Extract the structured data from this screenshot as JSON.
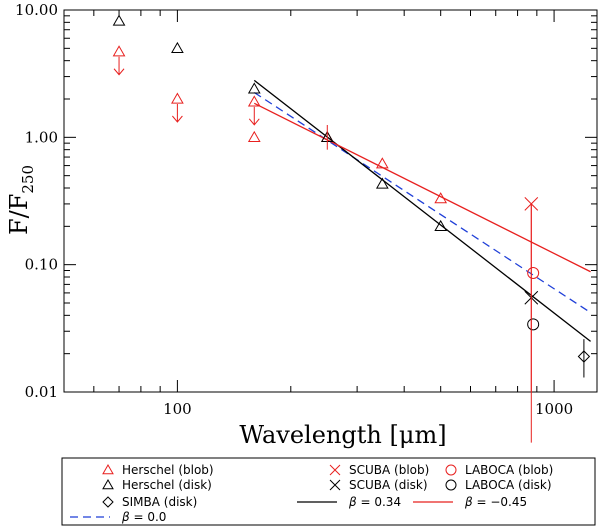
{
  "chart_data": {
    "type": "scatter",
    "title": "",
    "xlabel": "Wavelength [μm]",
    "ylabel_main": "F/F",
    "ylabel_sub": "250",
    "xscale": "log",
    "yscale": "log",
    "xlim": [
      50,
      1300
    ],
    "ylim": [
      0.01,
      10
    ],
    "x_major_ticks": [
      100,
      1000
    ],
    "x_tick_labels": [
      "100",
      "1000"
    ],
    "y_major_ticks": [
      0.01,
      0.1,
      1,
      10
    ],
    "y_tick_labels": [
      "0.01",
      "0.10",
      "1.00",
      "10.00"
    ],
    "colors": {
      "red": "#e8201f",
      "black": "#000000",
      "blue": "#1f3fd8"
    },
    "series": [
      {
        "name": "Herschel (blob)",
        "marker": "triangle",
        "color": "red",
        "points": [
          [
            160,
            1.0
          ],
          [
            250,
            1.0
          ],
          [
            350,
            0.62
          ],
          [
            500,
            0.33
          ]
        ],
        "upper_limits": [
          [
            70,
            4.7
          ],
          [
            100,
            2.0
          ],
          [
            160,
            1.9
          ]
        ]
      },
      {
        "name": "Herschel (disk)",
        "marker": "triangle",
        "color": "black",
        "points": [
          [
            70,
            8.2
          ],
          [
            100,
            5.0
          ],
          [
            160,
            2.4
          ],
          [
            250,
            1.0
          ],
          [
            350,
            0.43
          ],
          [
            500,
            0.2
          ]
        ],
        "upper_limits": []
      },
      {
        "name": "SCUBA (blob)",
        "marker": "x",
        "color": "red",
        "points": [
          [
            870,
            0.3
          ]
        ],
        "yerr": [
          [
            0.004,
            0.3
          ]
        ]
      },
      {
        "name": "SCUBA (disk)",
        "marker": "x",
        "color": "black",
        "points": [
          [
            870,
            0.055
          ]
        ]
      },
      {
        "name": "LABOCA (blob)",
        "marker": "circle",
        "color": "red",
        "points": [
          [
            880,
            0.086
          ]
        ]
      },
      {
        "name": "LABOCA (disk)",
        "marker": "circle",
        "color": "black",
        "points": [
          [
            880,
            0.034
          ]
        ]
      },
      {
        "name": "SIMBA (disk)",
        "marker": "diamond",
        "color": "black",
        "points": [
          [
            1200,
            0.019
          ]
        ],
        "yerr": [
          [
            0.013,
            0.026
          ]
        ]
      }
    ],
    "fits": [
      {
        "label": "β = 0.0",
        "color": "blue",
        "style": "dashed",
        "x": [
          160,
          1250
        ],
        "y": [
          2.25,
          0.042
        ]
      },
      {
        "label": "β = 0.34",
        "color": "black",
        "style": "solid",
        "x": [
          160,
          1250
        ],
        "y": [
          2.8,
          0.025
        ]
      },
      {
        "label": "β = −0.45",
        "color": "red",
        "style": "solid",
        "x": [
          160,
          1250
        ],
        "y": [
          1.85,
          0.088
        ]
      }
    ],
    "legend": {
      "placement": "bottom",
      "entries": [
        {
          "label": "Herschel (blob)",
          "marker": "triangle",
          "color": "red"
        },
        {
          "label": "SCUBA (blob)",
          "marker": "x",
          "color": "red"
        },
        {
          "label": "LABOCA (blob)",
          "marker": "circle",
          "color": "red"
        },
        {
          "label": "Herschel (disk)",
          "marker": "triangle",
          "color": "black"
        },
        {
          "label": "SCUBA (disk)",
          "marker": "x",
          "color": "black"
        },
        {
          "label": "LABOCA (disk)",
          "marker": "circle",
          "color": "black"
        },
        {
          "label": "SIMBA (disk)",
          "marker": "diamond",
          "color": "black"
        },
        {
          "label_prefix": "β",
          "label_rest": " = 0.34",
          "marker": "line-solid",
          "color": "black"
        },
        {
          "label_prefix": "β",
          "label_rest": " = −0.45",
          "marker": "line-solid",
          "color": "red"
        },
        {
          "label_prefix": "β",
          "label_rest": " = 0.0",
          "marker": "line-dashed",
          "color": "blue"
        }
      ]
    }
  }
}
